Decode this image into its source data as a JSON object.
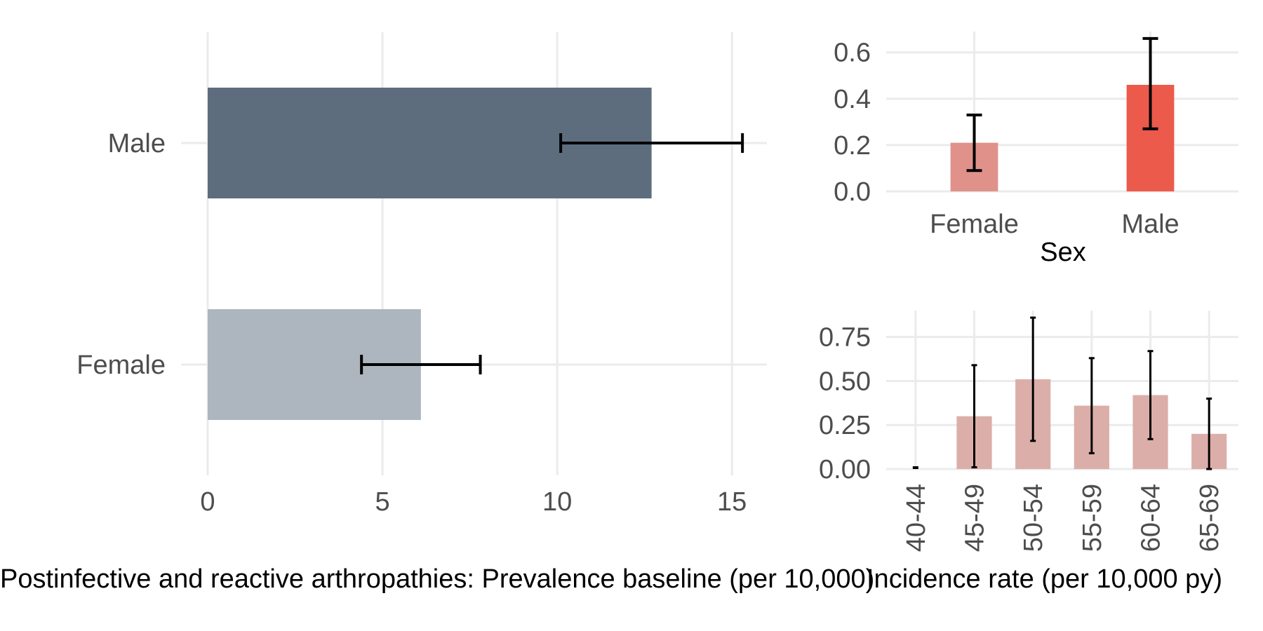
{
  "chart_data": [
    {
      "type": "bar",
      "orientation": "horizontal",
      "categories": [
        "Female",
        "Male"
      ],
      "values": [
        6.1,
        12.7
      ],
      "error_low": [
        4.4,
        10.1
      ],
      "error_high": [
        7.8,
        15.3
      ],
      "colors": [
        "#adb5bf",
        "#5d6d7e"
      ],
      "xlabel": "Postinfective and reactive arthropathies: Prevalence baseline (per 10,000)",
      "xticks": [
        "0",
        "5",
        "10",
        "15"
      ],
      "xlim": [
        0,
        16
      ],
      "grid": true
    },
    {
      "type": "bar",
      "categories": [
        "Female",
        "Male"
      ],
      "values": [
        0.21,
        0.46
      ],
      "error_low": [
        0.09,
        0.27
      ],
      "error_high": [
        0.33,
        0.66
      ],
      "colors": [
        "#e0928a",
        "#ec5a4b"
      ],
      "xlabel": "Sex",
      "yticks": [
        "0.0",
        "0.2",
        "0.4",
        "0.6"
      ],
      "ylim": [
        0,
        0.69
      ],
      "grid": true
    },
    {
      "type": "bar",
      "categories": [
        "40-44",
        "45-49",
        "50-54",
        "55-59",
        "60-64",
        "65-69"
      ],
      "values": [
        0,
        0.3,
        0.51,
        0.36,
        0.42,
        0.2
      ],
      "error_low": [
        0,
        0.01,
        0.16,
        0.09,
        0.17,
        0
      ],
      "error_high": [
        0,
        0.59,
        0.86,
        0.63,
        0.67,
        0.4
      ],
      "color": "#dcaea9",
      "xlabel": "Incidence rate (per 10,000 py)",
      "yticks": [
        "0.00",
        "0.25",
        "0.50",
        "0.75"
      ],
      "ylim": [
        0,
        0.9
      ],
      "grid": true
    }
  ]
}
